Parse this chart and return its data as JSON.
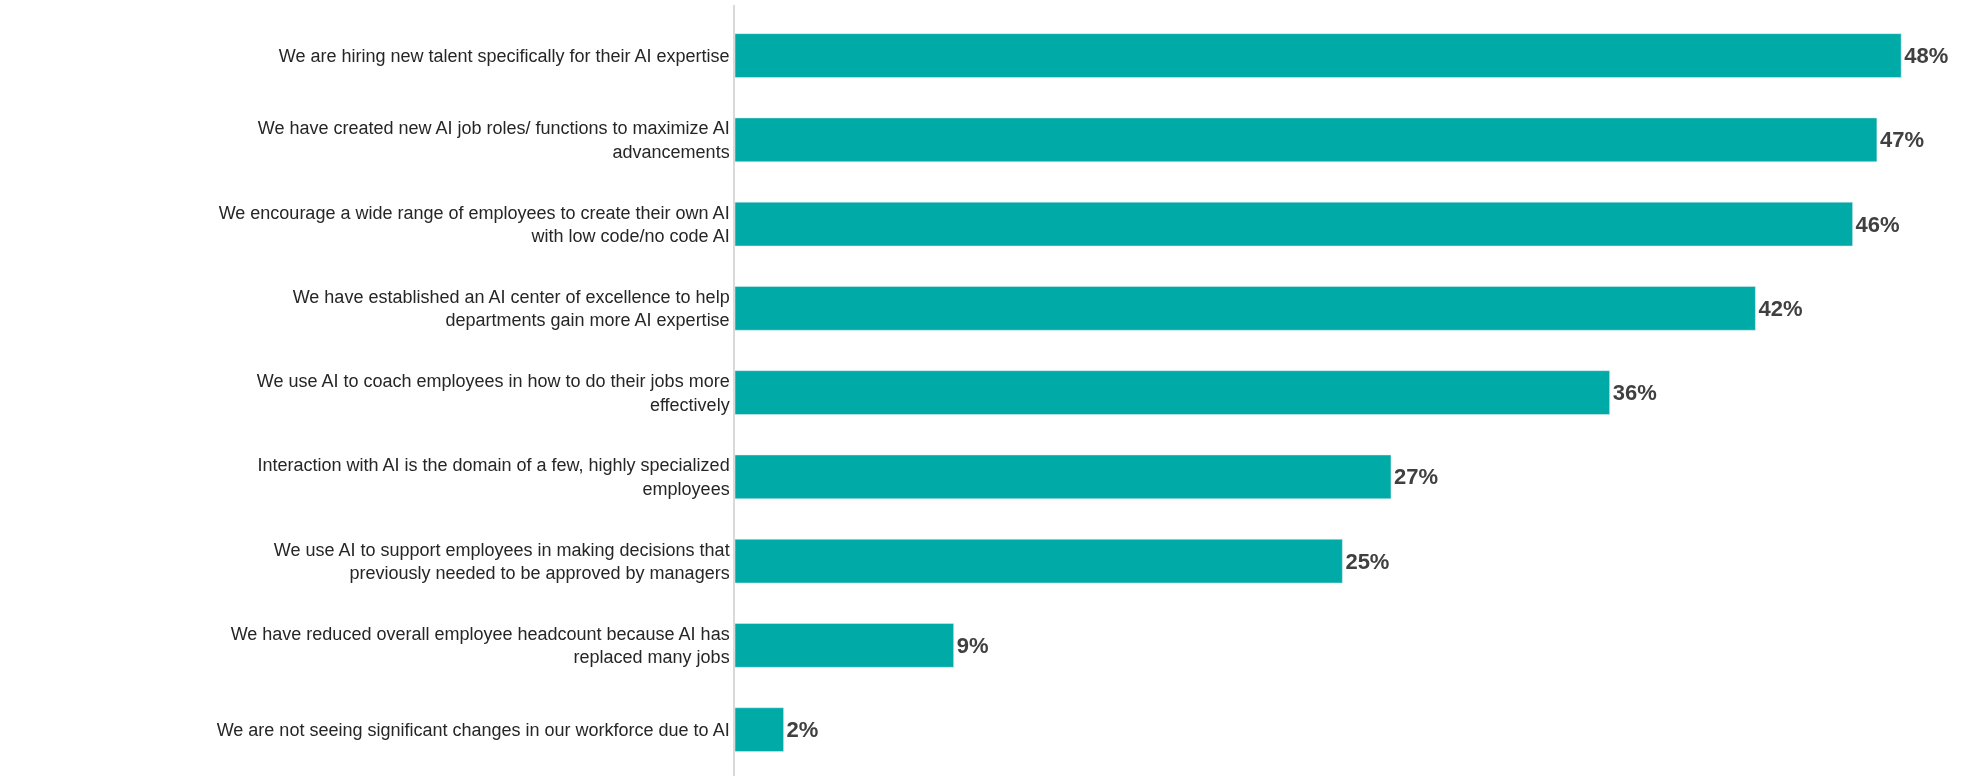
{
  "chart_data": {
    "type": "bar",
    "orientation": "horizontal",
    "categories": [
      "We are hiring new talent specifically for their AI expertise",
      "We have created new AI job roles/ functions to maximize AI advancements",
      "We encourage a wide range of employees to create their own AI with low code/no code AI",
      "We have established an AI center of excellence to help departments gain more AI expertise",
      "We use AI to coach employees in how to do their jobs more effectively",
      "Interaction with AI is the domain of a few, highly specialized employees",
      "We use AI to support employees in making decisions that previously needed to be approved by managers",
      "We have reduced overall employee headcount because AI has replaced many jobs",
      "We are not seeing significant changes in our workforce due to AI"
    ],
    "values": [
      48,
      47,
      46,
      42,
      36,
      27,
      25,
      9,
      2
    ],
    "value_labels": [
      "48%",
      "47%",
      "46%",
      "42%",
      "36%",
      "27%",
      "25%",
      "9%",
      "2%"
    ],
    "color": "#00aaa7",
    "legend": false
  }
}
